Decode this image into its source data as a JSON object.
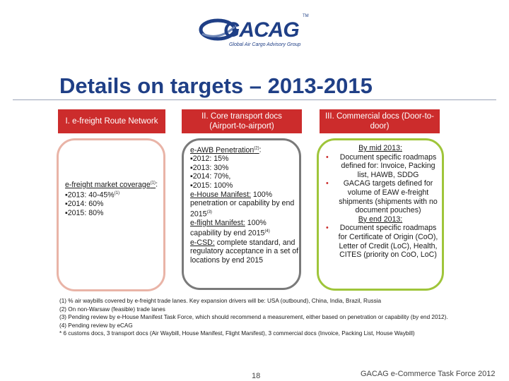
{
  "logo": {
    "wordmark": "GACAG",
    "tagline": "Global Air Cargo Advisory Group",
    "tm": "TM"
  },
  "title": "Details on targets – 2013-2015",
  "columns": [
    {
      "header": "I. e-freight Route Network"
    },
    {
      "header": "II. Core transport docs (Airport-to-airport)"
    },
    {
      "header": "III. Commercial docs (Door-to-door)"
    }
  ],
  "box1": {
    "heading": "e-freight market coverage",
    "heading_sup": "(1)",
    "colon": ":",
    "line1": "▪2013: 40-45%",
    "line1_sup": "(1)",
    "line2": "▪2014: 60%",
    "line3": "▪2015: 80%"
  },
  "box2": {
    "awb_heading": "e-AWB Penetration",
    "awb_sup": "(2)",
    "colon": ":",
    "awb_lines": [
      "▪2012: 15%",
      "▪2013: 30%",
      "▪2014: 70%,",
      "▪2015: 100%"
    ],
    "house_label": "e-House Manifest:",
    "house_text": "100% penetration or capability by end 2015",
    "house_sup": "(3)",
    "flight_label": "e-flight Manifest:",
    "flight_text": "100% capability by end 2015",
    "flight_sup": "(4)",
    "csd_label": "e-CSD:",
    "csd_text": "complete standard, and regulatory acceptance in a set of locations by end 2015"
  },
  "box3": {
    "mid_heading": "By mid 2013:",
    "mid_items": [
      "Document specific roadmaps defined for: Invoice, Packing list, HAWB, SDDG",
      "GACAG targets defined for volume of EAW e-freight shipments (shipments with no document pouches)"
    ],
    "end_heading": "By end 2013:",
    "end_items": [
      "Document specific roadmaps for Certificate of Origin (CoO), Letter of Credit (LoC), Health, CITES (priority on CoO, LoC)"
    ],
    "bullet": "•"
  },
  "notes": [
    "(1) % air waybills covered by e-freight trade lanes. Key expansion drivers will be: USA (outbound), China, India, Brazil, Russia",
    "(2) On non-Warsaw (feasible) trade lanes",
    "(3) Pending review by e-House Manifest Task Force, which should recommend a measurement, either based on penetration or capability (by end 2012).",
    "(4) Pending review by eCAG",
    "* 6 customs docs, 3 transport docs (Air Waybill, House Manifest, Flight Manifest), 3 commercial docs (Invoice, Packing List, House Waybill)"
  ],
  "page_number": "18",
  "footer": "GACAG e-Commerce Task Force 2012"
}
